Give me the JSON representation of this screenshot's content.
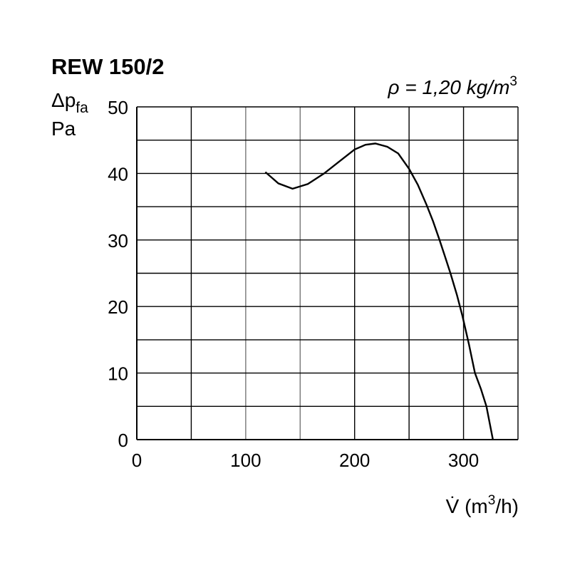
{
  "chart_data": {
    "type": "line",
    "title": "REW 150/2",
    "annotation": {
      "text": "ρ = 1,20 kg/m",
      "sup": "3"
    },
    "ylabel": {
      "symbol": "Δp",
      "sub": "fa",
      "unit": "Pa"
    },
    "xlabel": {
      "symbol": "V̇",
      "text": " (m",
      "sup": "3",
      "tail": "/h)"
    },
    "xlim": [
      0,
      350
    ],
    "ylim": [
      0,
      50
    ],
    "xticks": [
      0,
      100,
      200,
      300
    ],
    "yticks": [
      0,
      10,
      20,
      30,
      40,
      50
    ],
    "xgrid_step": 50,
    "ygrid_step": 5,
    "grid": true,
    "series": [
      {
        "x": [
          118,
          130,
          143,
          157,
          172,
          186,
          200,
          210,
          219,
          230,
          240,
          250,
          258,
          266,
          272,
          278,
          283,
          288,
          294,
          299,
          305,
          310.5,
          316,
          321,
          327
        ],
        "y": [
          40.2,
          38.5,
          37.7,
          38.4,
          40.0,
          41.8,
          43.6,
          44.3,
          44.5,
          44.0,
          43.0,
          40.7,
          38.3,
          35.3,
          32.8,
          30.0,
          27.5,
          25.0,
          21.7,
          18.6,
          14.3,
          10.0,
          7.6,
          5.0,
          0.0
        ]
      }
    ],
    "line_color": "#000000"
  }
}
